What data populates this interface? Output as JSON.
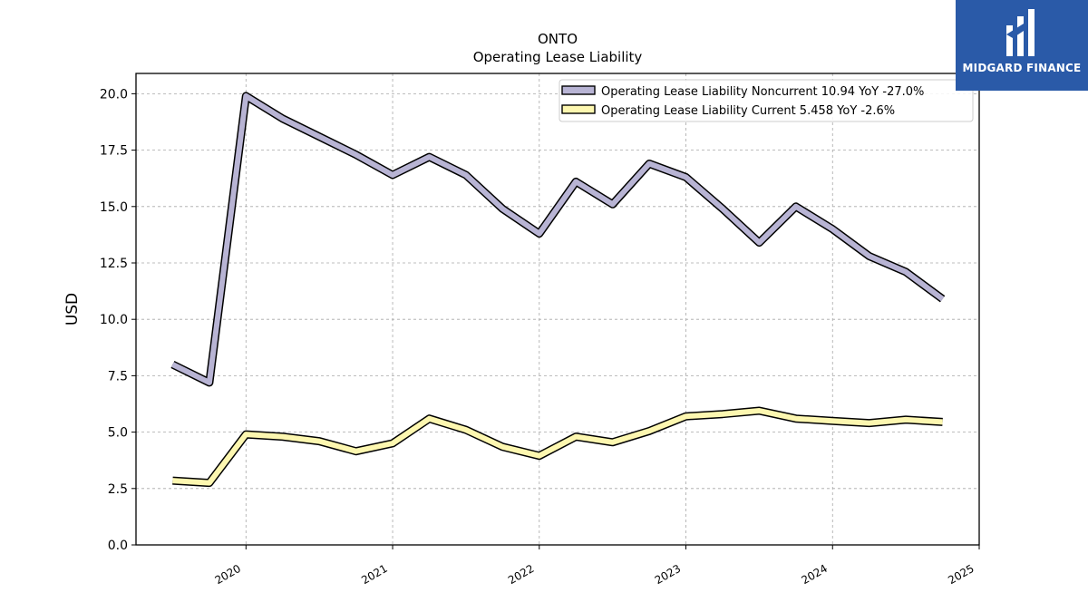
{
  "brand": {
    "name": "MIDGARD FINANCE",
    "bg_color": "#2a5aa8"
  },
  "chart_data": {
    "type": "line",
    "title": "ONTO",
    "subtitle": "Operating Lease Liability",
    "ylabel": "USD",
    "ylim": [
      0,
      20.9
    ],
    "xlim": [
      2019.25,
      2025.0
    ],
    "yticks": [
      "0.0",
      "2.5",
      "5.0",
      "7.5",
      "10.0",
      "12.5",
      "15.0",
      "17.5",
      "20.0"
    ],
    "xticks": [
      "2020",
      "2021",
      "2022",
      "2023",
      "2024",
      "2025"
    ],
    "grid": true,
    "legend_position": "top-right",
    "series": [
      {
        "name": "Operating Lease Liability Noncurrent",
        "legend_label": "Operating Lease Liability Noncurrent  10.94 YoY -27.0%",
        "color": "#b8b4d4",
        "x": [
          2019.5,
          2019.75,
          2020.0,
          2020.25,
          2020.5,
          2020.75,
          2021.0,
          2021.25,
          2021.5,
          2021.75,
          2022.0,
          2022.25,
          2022.5,
          2022.75,
          2023.0,
          2023.25,
          2023.5,
          2023.75,
          2024.0,
          2024.25,
          2024.5,
          2024.75
        ],
        "y": [
          8.0,
          7.2,
          19.9,
          18.9,
          18.1,
          17.3,
          16.4,
          17.2,
          16.4,
          14.9,
          13.8,
          16.1,
          15.1,
          16.9,
          16.3,
          14.9,
          13.4,
          15.0,
          14.0,
          12.8,
          12.1,
          10.9
        ]
      },
      {
        "name": "Operating Lease Liability Current",
        "legend_label": "Operating Lease Liability Current  5.458 YoY -2.6%",
        "color": "#fdf7b0",
        "x": [
          2019.5,
          2019.75,
          2020.0,
          2020.25,
          2020.5,
          2020.75,
          2021.0,
          2021.25,
          2021.5,
          2021.75,
          2022.0,
          2022.25,
          2022.5,
          2022.75,
          2023.0,
          2023.25,
          2023.5,
          2023.75,
          2024.0,
          2024.25,
          2024.5,
          2024.75
        ],
        "y": [
          2.85,
          2.75,
          4.9,
          4.8,
          4.6,
          4.15,
          4.5,
          5.6,
          5.1,
          4.35,
          3.95,
          4.8,
          4.55,
          5.05,
          5.7,
          5.8,
          5.95,
          5.6,
          5.5,
          5.4,
          5.55,
          5.45
        ]
      }
    ]
  }
}
